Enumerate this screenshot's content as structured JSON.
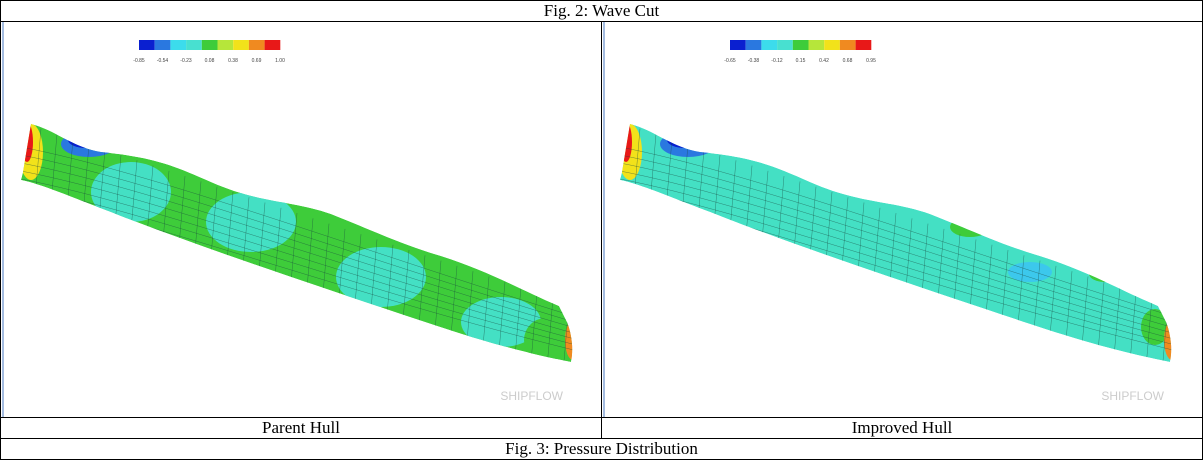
{
  "header": {
    "title": "Fig. 2: Wave Cut"
  },
  "panels": [
    {
      "colorbar_labels": [
        "-0.85",
        "-0.54",
        "-0.23",
        "0.08",
        "0.38",
        "0.69",
        "1.00"
      ],
      "watermark": "SHIPFLOW",
      "caption": "Parent Hull"
    },
    {
      "colorbar_labels": [
        "-0.65",
        "-0.38",
        "-0.12",
        "0.15",
        "0.42",
        "0.68",
        "0.95"
      ],
      "watermark": "SHIPFLOW",
      "caption": "Improved Hull"
    }
  ],
  "footer": {
    "title": "Fig. 3: Pressure Distribution"
  }
}
